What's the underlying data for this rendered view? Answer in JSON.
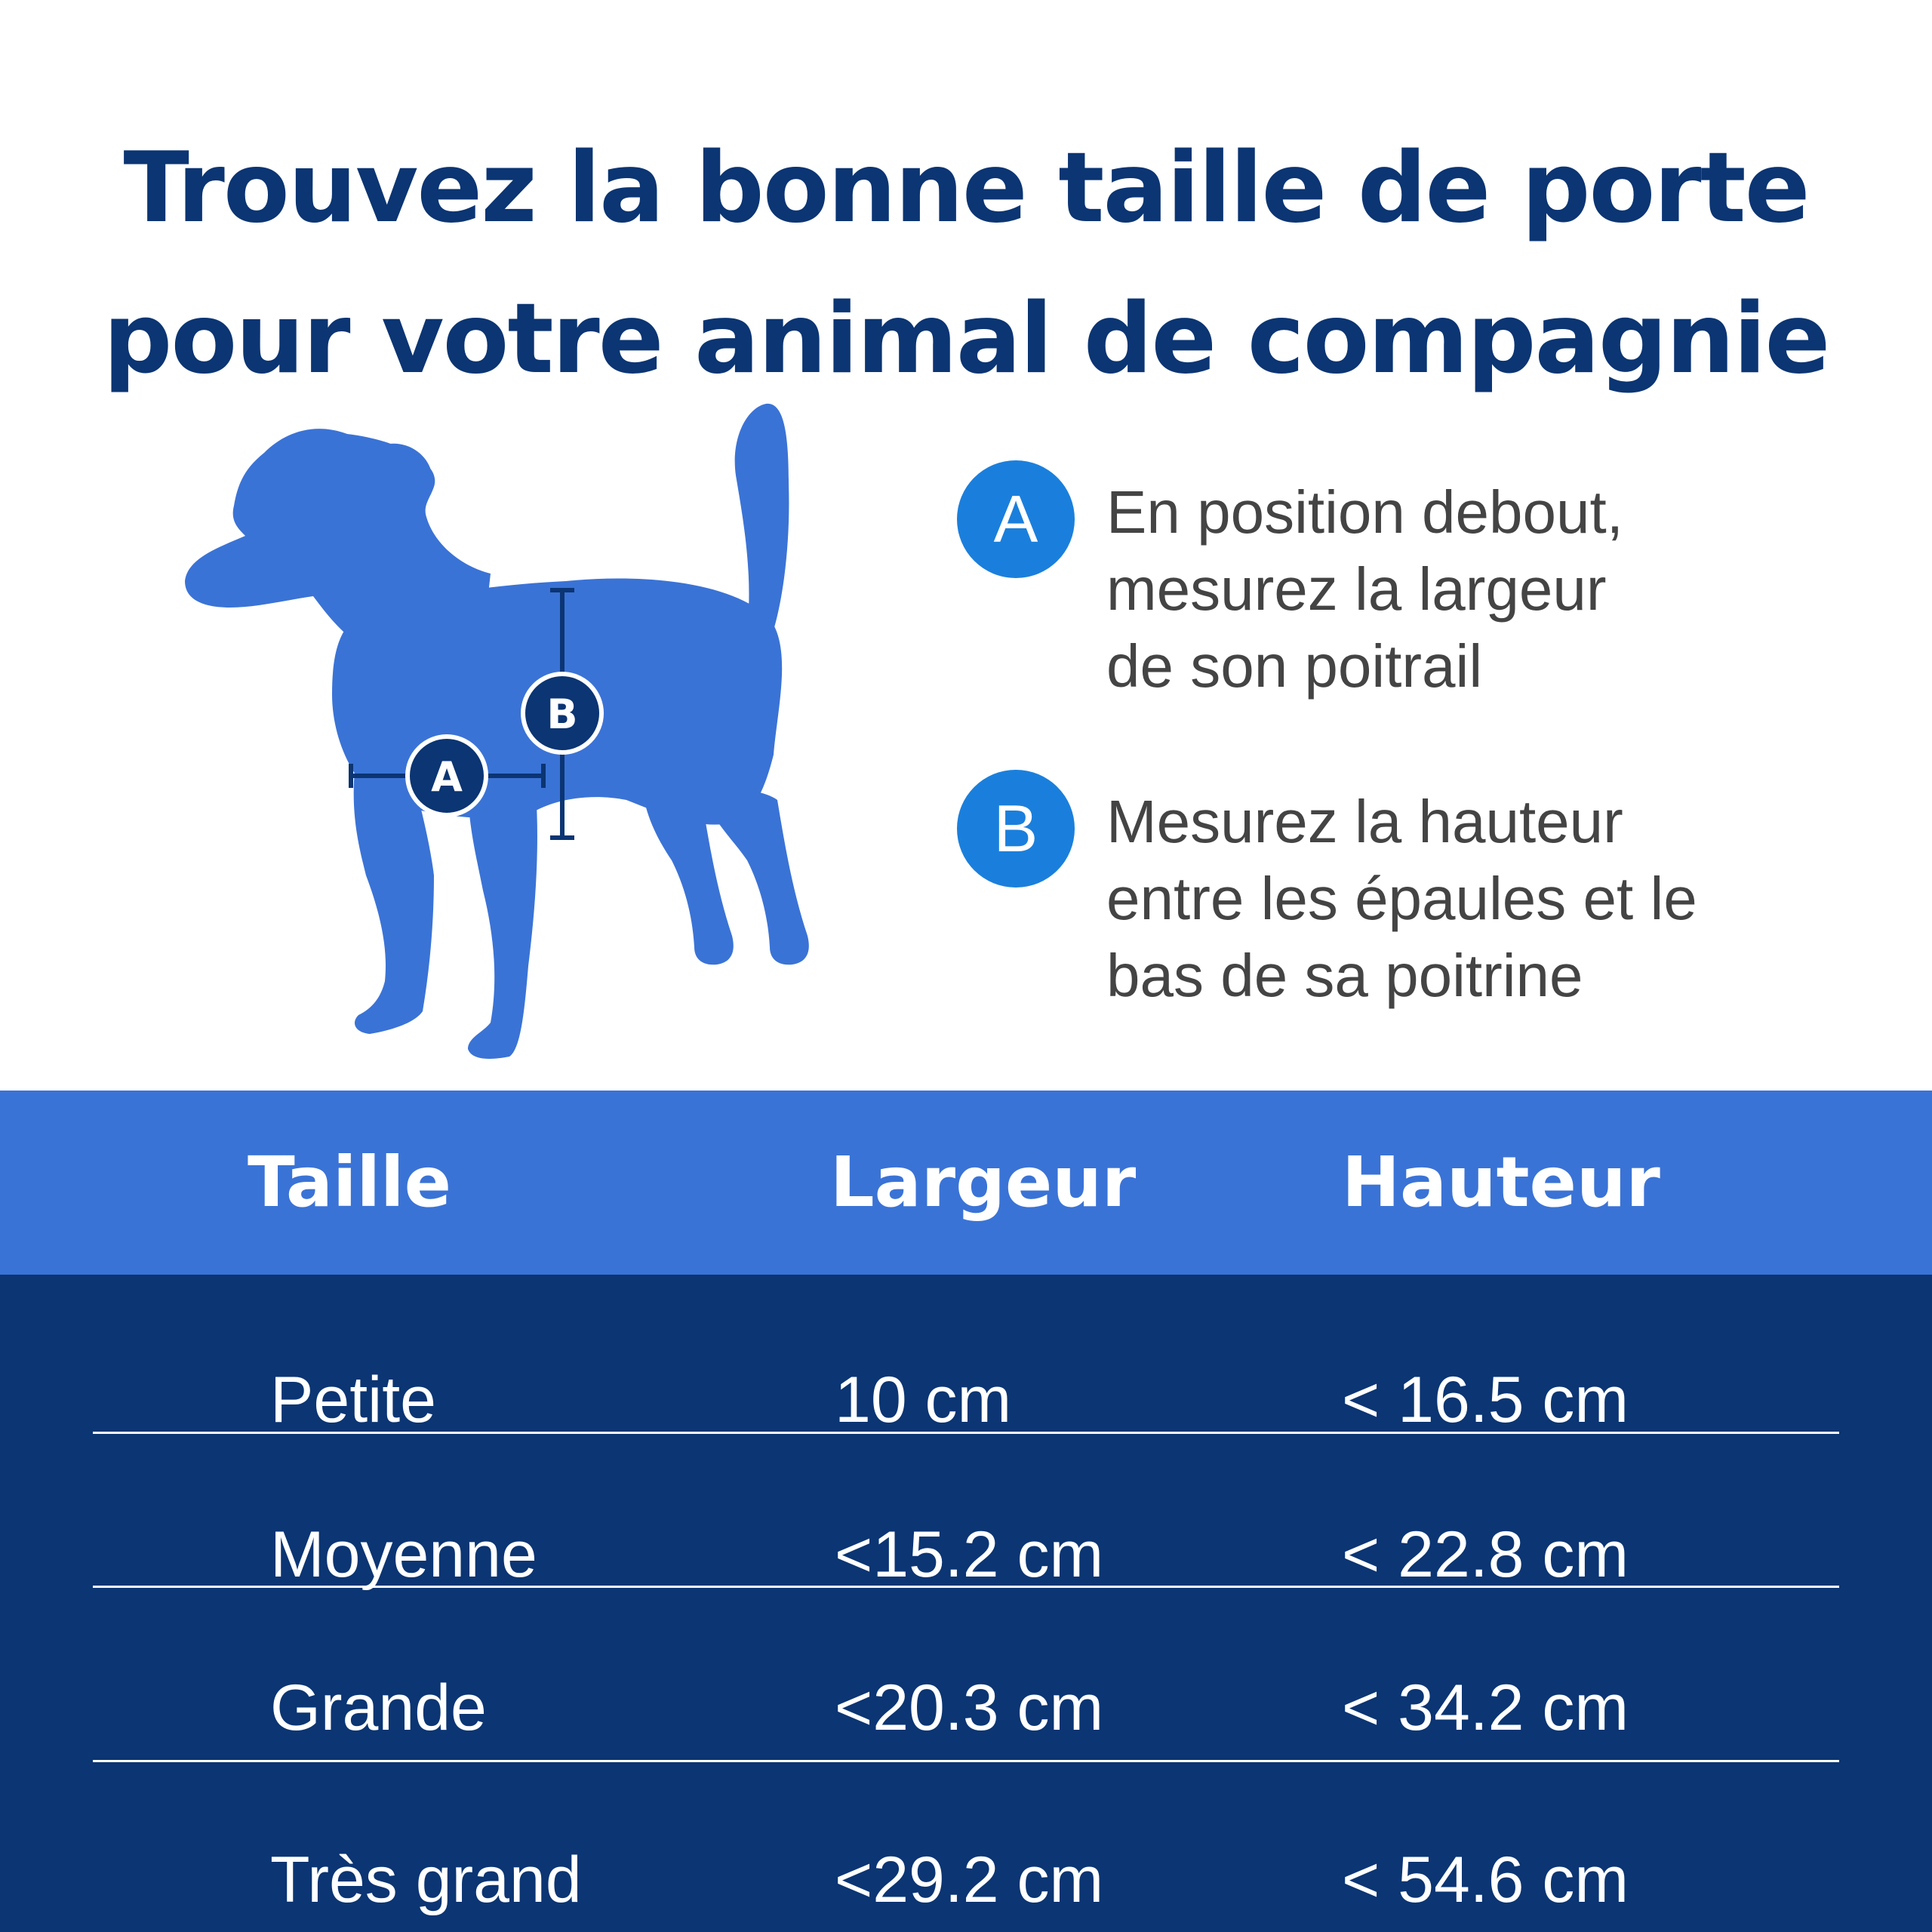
{
  "title": {
    "line1": "Trouvez la bonne taille de porte",
    "line2": "pour votre animal de compagnie"
  },
  "diagram": {
    "label_a": "A",
    "label_b": "B"
  },
  "legend": [
    {
      "badge": "A",
      "lines": [
        "En position debout,",
        "mesurez la largeur",
        "de son poitrail"
      ]
    },
    {
      "badge": "B",
      "lines": [
        "Mesurez la hauteur",
        "entre les épaules et le",
        "bas de sa poitrine"
      ]
    }
  ],
  "table": {
    "headers": [
      "Taille",
      "Largeur",
      "Hauteur"
    ],
    "rows": [
      [
        "Petite",
        "10 cm",
        "< 16.5 cm"
      ],
      [
        "Moyenne",
        "<15.2 cm",
        "< 22.8 cm"
      ],
      [
        "Grande",
        "<20.3 cm",
        "< 34.2 cm"
      ],
      [
        "Très grand",
        "<29.2 cm",
        "< 54.6 cm"
      ]
    ]
  },
  "colors": {
    "navy": "#0b3573",
    "dog_blue": "#3a73d6",
    "badge_blue": "#1a7fdc",
    "text_gray": "#444444"
  },
  "icons": {
    "dog": "dog-silhouette-icon"
  }
}
